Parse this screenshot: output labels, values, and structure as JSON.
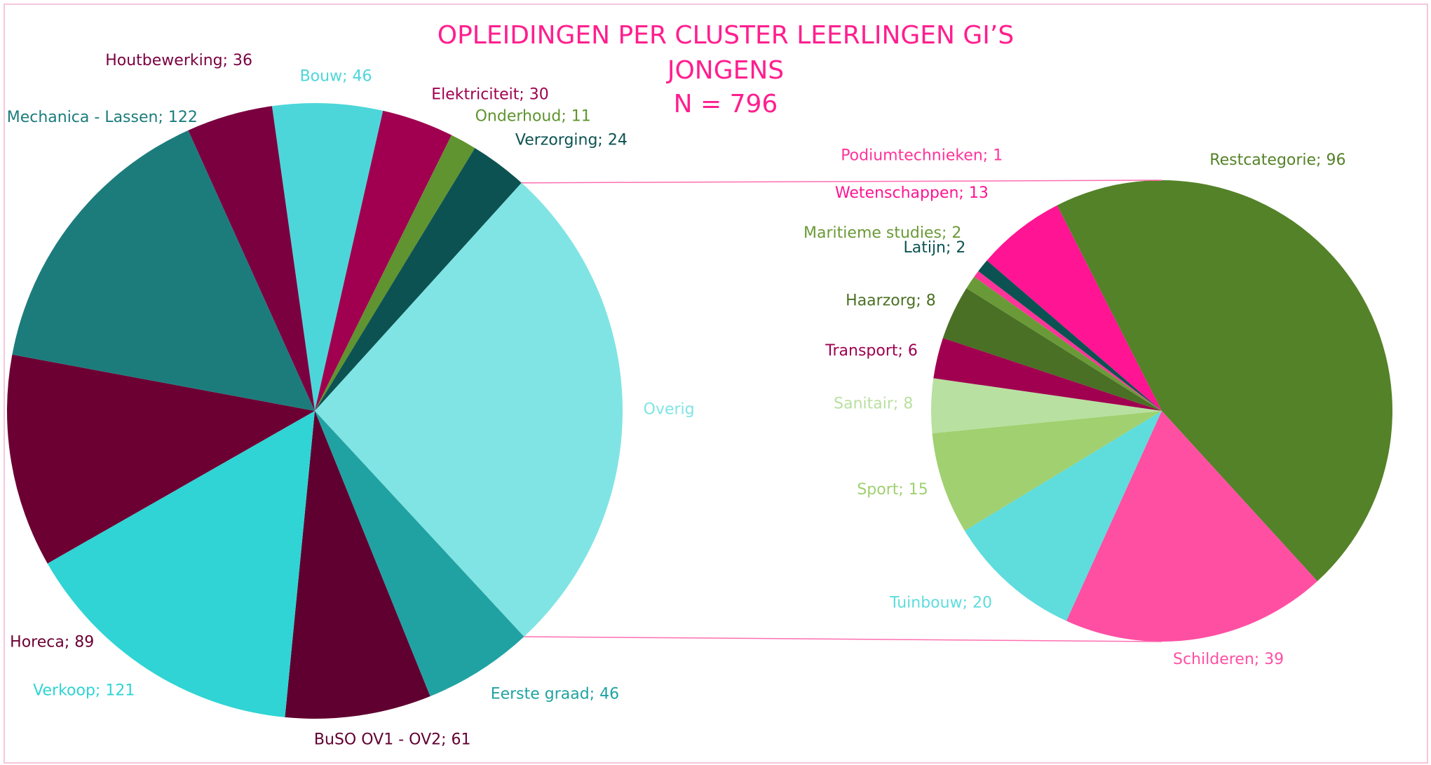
{
  "chart_data": [
    {
      "type": "pie",
      "title": "OPLEIDINGEN PER CLUSTER LEERLINGEN GI’S",
      "subtitle": "JONGENS",
      "annotation": "N = 796",
      "values": [
        46,
        30,
        11,
        24,
        210,
        46,
        61,
        121,
        89,
        122,
        36
      ],
      "value_labels": [
        "Bouw; 46",
        "Elektriciteit; 30",
        "Onderhoud; 11",
        "Verzorging; 24",
        "Overig",
        "Eerste graad; 46",
        "BuSO OV1 - OV2; 61",
        "Verkoop; 121",
        "Horeca; 89",
        "Mechanica - Lassen; 122",
        "Houtbewerking; 36"
      ],
      "colors": [
        "#4dd6d9",
        "#a0004f",
        "#5f9430",
        "#0d5252",
        "#80e4e4",
        "#21a2a2",
        "#600030",
        "#30d4d4",
        "#6c0033",
        "#1c7c7c",
        "#7a0040"
      ]
    },
    {
      "type": "pie",
      "values": [
        96,
        39,
        20,
        15,
        8,
        6,
        8,
        2,
        1,
        2,
        13
      ],
      "value_labels": [
        "Restcategorie; 96",
        "Schilderen; 39",
        "Tuinbouw; 20",
        "Sport; 15",
        "Sanitair; 8",
        "Transport; 6",
        "Haarzorg; 8",
        "Maritieme studies; 2",
        "Podiumtechnieken; 1",
        "Latijn; 2",
        "Wetenschappen; 13"
      ],
      "colors": [
        "#548228",
        "#ff4fa3",
        "#5fdcdc",
        "#a0d070",
        "#b8e0a0",
        "#a0004f",
        "#4a7025",
        "#6a9a38",
        "#ff3399",
        "#0d5252",
        "#ff1493"
      ]
    }
  ]
}
